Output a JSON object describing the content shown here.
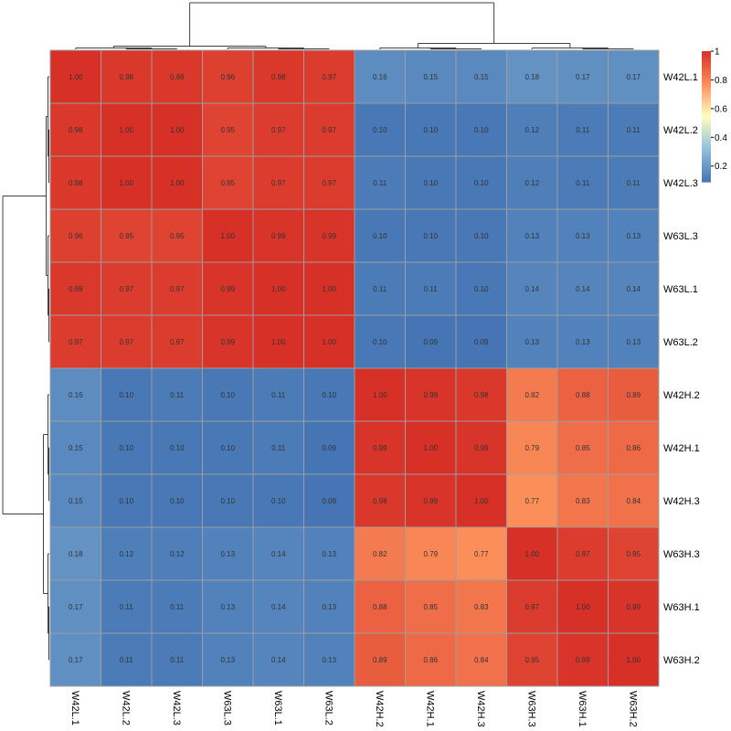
{
  "chart_data": {
    "type": "heatmap",
    "title": "",
    "xlabel": "",
    "ylabel": "",
    "rows": [
      "W42L.1",
      "W42L.2",
      "W42L.3",
      "W63L.3",
      "W63L.1",
      "W63L.2",
      "W42H.2",
      "W42H.1",
      "W42H.3",
      "W63H.3",
      "W63H.1",
      "W63H.2"
    ],
    "columns": [
      "W42L.1",
      "W42L.2",
      "W42L.3",
      "W63L.3",
      "W63L.1",
      "W63L.2",
      "W42H.2",
      "W42H.1",
      "W42H.3",
      "W63H.3",
      "W63H.1",
      "W63H.2"
    ],
    "values": [
      [
        1.0,
        0.98,
        0.98,
        0.96,
        0.98,
        0.97,
        0.16,
        0.15,
        0.15,
        0.18,
        0.17,
        0.17
      ],
      [
        0.98,
        1.0,
        1.0,
        0.95,
        0.97,
        0.97,
        0.1,
        0.1,
        0.1,
        0.12,
        0.11,
        0.11
      ],
      [
        0.98,
        1.0,
        1.0,
        0.95,
        0.97,
        0.97,
        0.11,
        0.1,
        0.1,
        0.12,
        0.11,
        0.11
      ],
      [
        0.96,
        0.95,
        0.95,
        1.0,
        0.99,
        0.99,
        0.1,
        0.1,
        0.1,
        0.13,
        0.13,
        0.13
      ],
      [
        0.98,
        0.97,
        0.97,
        0.99,
        1.0,
        1.0,
        0.11,
        0.11,
        0.1,
        0.14,
        0.14,
        0.14
      ],
      [
        0.97,
        0.97,
        0.97,
        0.99,
        1.0,
        1.0,
        0.1,
        0.09,
        0.09,
        0.13,
        0.13,
        0.13
      ],
      [
        0.16,
        0.1,
        0.11,
        0.1,
        0.11,
        0.1,
        1.0,
        0.99,
        0.98,
        0.82,
        0.88,
        0.89
      ],
      [
        0.15,
        0.1,
        0.1,
        0.1,
        0.11,
        0.09,
        0.99,
        1.0,
        0.99,
        0.79,
        0.85,
        0.86
      ],
      [
        0.15,
        0.1,
        0.1,
        0.1,
        0.1,
        0.09,
        0.98,
        0.99,
        1.0,
        0.77,
        0.83,
        0.84
      ],
      [
        0.18,
        0.12,
        0.12,
        0.13,
        0.14,
        0.13,
        0.82,
        0.79,
        0.77,
        1.0,
        0.97,
        0.95
      ],
      [
        0.17,
        0.11,
        0.11,
        0.13,
        0.14,
        0.13,
        0.88,
        0.85,
        0.83,
        0.97,
        1.0,
        0.99
      ],
      [
        0.17,
        0.11,
        0.11,
        0.13,
        0.14,
        0.13,
        0.89,
        0.86,
        0.84,
        0.95,
        0.99,
        1.0
      ]
    ],
    "legend": {
      "placement": "top-right",
      "ticks": [
        "1",
        "0.8",
        "0.6",
        "0.4",
        "0.2"
      ],
      "tick_values": [
        1,
        0.8,
        0.6,
        0.4,
        0.2
      ],
      "range": [
        0.09,
        1.0
      ]
    },
    "colormap": [
      "#4575B4",
      "#91BFDB",
      "#FFFFBF",
      "#FC8D59",
      "#D73027"
    ],
    "grid_color": "#9E9E9E",
    "dendrogram_color": "#404040",
    "row_dendrogram": true,
    "column_dendrogram": true
  }
}
